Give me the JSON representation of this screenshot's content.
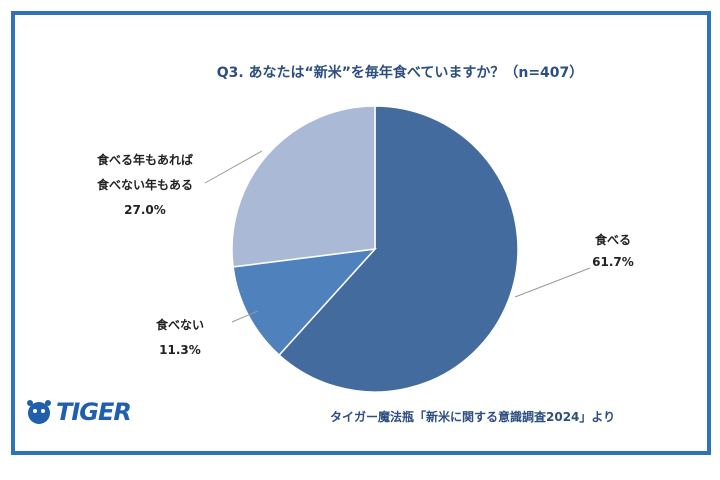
{
  "chart_data": {
    "type": "pie",
    "title": "Q3. あなたは“新米”を毎年食べていますか？（n=407）",
    "categories": [
      "食べる",
      "食べない",
      "食べる年もあれば\n食べない年もある"
    ],
    "values": [
      61.7,
      11.3,
      27.0
    ],
    "value_labels": [
      "61.7%",
      "11.3%",
      "27.0%"
    ],
    "colors": [
      "#436b9e",
      "#4f81bd",
      "#a9b9d6"
    ],
    "source": "タイガー魔法瓶「新米に関する意識調査2024」より"
  },
  "logo": "TIGER"
}
